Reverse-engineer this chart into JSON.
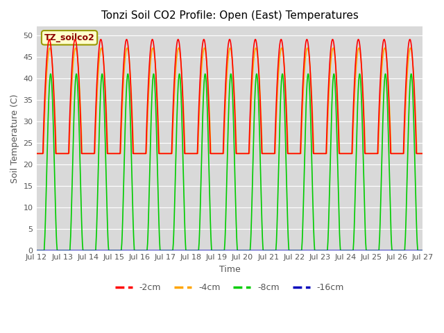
{
  "title": "Tonzi Soil CO2 Profile: Open (East) Temperatures",
  "xlabel": "Time",
  "ylabel": "Soil Temperature (C)",
  "ylim": [
    0,
    52
  ],
  "yticks": [
    0,
    5,
    10,
    15,
    20,
    25,
    30,
    35,
    40,
    45,
    50
  ],
  "legend_label": "TZ_soilco2",
  "series_labels": [
    "-2cm",
    "-4cm",
    "-8cm",
    "-16cm"
  ],
  "series_colors": [
    "#ff0000",
    "#ffa500",
    "#00cc00",
    "#0000bb"
  ],
  "background_color": "#d9d9d9",
  "xtick_labels": [
    "Jul 12",
    "Jul 13",
    "Jul 14",
    "Jul 15",
    "Jul 16",
    "Jul 17",
    "Jul 18",
    "Jul 19",
    "Jul 20",
    "Jul 21",
    "Jul 22",
    "Jul 23",
    "Jul 24",
    "Jul 25",
    "Jul 26",
    "Jul 27"
  ],
  "n_days": 15,
  "start_day": 12
}
